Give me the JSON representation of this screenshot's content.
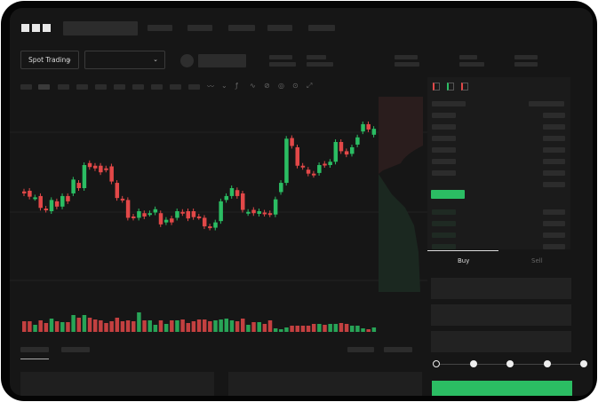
{
  "header": {
    "logo": "OKX"
  },
  "market": {
    "mode_label": "Spot Trading",
    "pair_select": ""
  },
  "trade": {
    "buy_label": "Buy",
    "sell_label": "Sell",
    "active": "Buy",
    "slider_positions": [
      0,
      25,
      50,
      75,
      100
    ],
    "slider_value": 0
  },
  "colors": {
    "up": "#2bbd63",
    "down": "#e24848",
    "bg": "#161616"
  },
  "chart_data": {
    "type": "candlestick",
    "candles": [
      [
        95,
        92
      ],
      [
        96,
        87
      ],
      [
        85,
        86
      ],
      [
        88,
        70
      ],
      [
        69,
        67
      ],
      [
        65,
        82
      ],
      [
        80,
        72
      ],
      [
        72,
        88
      ],
      [
        88,
        80
      ],
      [
        92,
        113
      ],
      [
        108,
        100
      ],
      [
        100,
        135
      ],
      [
        138,
        132
      ],
      [
        134,
        130
      ],
      [
        134,
        124
      ],
      [
        130,
        128
      ],
      [
        133,
        110
      ],
      [
        108,
        85
      ],
      [
        84,
        82
      ],
      [
        82,
        55
      ],
      [
        57,
        55
      ],
      [
        55,
        65
      ],
      [
        62,
        57
      ],
      [
        61,
        62
      ],
      [
        63,
        68
      ],
      [
        62,
        45
      ],
      [
        48,
        52
      ],
      [
        54,
        48
      ],
      [
        55,
        65
      ],
      [
        64,
        62
      ],
      [
        65,
        54
      ],
      [
        65,
        56
      ],
      [
        57,
        56
      ],
      [
        55,
        42
      ],
      [
        42,
        40
      ],
      [
        40,
        48
      ],
      [
        50,
        80
      ],
      [
        82,
        88
      ],
      [
        88,
        100
      ],
      [
        97,
        88
      ],
      [
        92,
        67
      ],
      [
        62,
        64
      ],
      [
        67,
        62
      ],
      [
        61,
        65
      ],
      [
        63,
        61
      ],
      [
        62,
        60
      ],
      [
        60,
        83
      ],
      [
        94,
        108
      ],
      [
        108,
        175
      ],
      [
        176,
        164
      ],
      [
        162,
        134
      ],
      [
        134,
        132
      ],
      [
        128,
        122
      ],
      [
        122,
        120
      ],
      [
        123,
        135
      ],
      [
        137,
        135
      ],
      [
        135,
        140
      ],
      [
        140,
        170
      ],
      [
        170,
        156
      ],
      [
        156,
        151
      ],
      [
        152,
        162
      ],
      [
        166,
        177
      ],
      [
        186,
        197
      ],
      [
        197,
        189
      ],
      [
        181,
        190
      ]
    ],
    "volume": [
      12,
      12,
      8,
      13,
      10,
      15,
      12,
      11,
      11,
      19,
      16,
      19,
      16,
      14,
      13,
      10,
      12,
      16,
      12,
      13,
      12,
      22,
      13,
      13,
      8,
      13,
      9,
      13,
      13,
      14,
      10,
      12,
      14,
      14,
      12,
      13,
      14,
      15,
      13,
      12,
      15,
      8,
      11,
      11,
      9,
      13,
      4,
      3,
      5,
      7,
      7,
      7,
      7,
      9,
      9,
      8,
      9,
      9,
      10,
      9,
      7,
      7,
      4,
      3,
      5
    ],
    "ylim": [
      30,
      205
    ]
  }
}
